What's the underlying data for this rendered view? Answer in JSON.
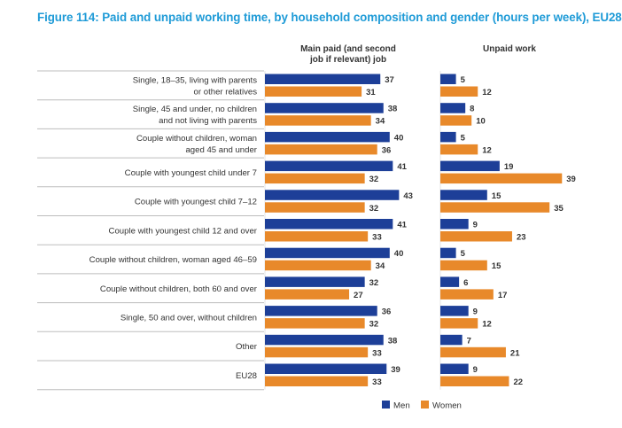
{
  "chart_data": {
    "type": "bar",
    "orientation": "horizontal",
    "title": "Figure 114: Paid and unpaid working time, by household composition and gender (hours per week), EU28",
    "categories": [
      [
        "Single, 18–35, living with parents",
        "or other relatives"
      ],
      [
        "Single, 45 and under, no children",
        "and not living with parents"
      ],
      [
        "Couple without children, woman",
        "aged 45 and under"
      ],
      [
        "Couple with youngest child under 7"
      ],
      [
        "Couple with youngest child 7–12"
      ],
      [
        "Couple with youngest child 12 and over"
      ],
      [
        "Couple without children, woman aged 46–59"
      ],
      [
        "Couple without children, both 60 and over"
      ],
      [
        "Single, 50 and over, without children"
      ],
      [
        "Other"
      ],
      [
        "EU28"
      ]
    ],
    "panels": [
      {
        "title_lines": [
          "Main paid (and second",
          "job if relevant) job"
        ],
        "series": [
          {
            "name": "Men",
            "values": [
              37,
              38,
              40,
              41,
              43,
              41,
              40,
              32,
              36,
              38,
              39
            ]
          },
          {
            "name": "Women",
            "values": [
              31,
              34,
              36,
              32,
              32,
              33,
              34,
              27,
              32,
              33,
              33
            ]
          }
        ],
        "xlim": [
          0,
          45
        ]
      },
      {
        "title_lines": [
          "Unpaid work"
        ],
        "series": [
          {
            "name": "Men",
            "values": [
              5,
              8,
              5,
              19,
              15,
              9,
              5,
              6,
              9,
              7,
              9
            ]
          },
          {
            "name": "Women",
            "values": [
              12,
              10,
              12,
              39,
              35,
              23,
              15,
              17,
              12,
              21,
              22
            ]
          }
        ],
        "xlim": [
          0,
          45
        ]
      }
    ],
    "legend": {
      "position": "bottom",
      "entries": [
        "Men",
        "Women"
      ]
    },
    "colors": {
      "Men": "#1d3f98",
      "Women": "#e8892a"
    },
    "grid": false,
    "xlabel": "",
    "ylabel": "",
    "data_labels": true
  }
}
